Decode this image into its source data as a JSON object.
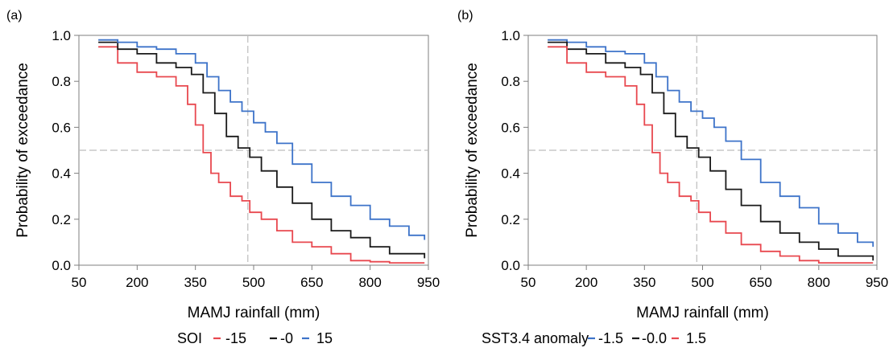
{
  "chart_data": [
    {
      "type": "line",
      "panel_label": "(a)",
      "xlabel": "MAMJ rainfall (mm)",
      "ylabel": "Probability of exceedance",
      "xlim": [
        50,
        950
      ],
      "ylim": [
        0.0,
        1.0
      ],
      "xticks": [
        "50",
        "200",
        "350",
        "500",
        "650",
        "800",
        "950"
      ],
      "yticks": [
        "0.0",
        "0.2",
        "0.4",
        "0.6",
        "0.8",
        "1.0"
      ],
      "reference_lines": {
        "x": 485,
        "y": 0.5
      },
      "legend": {
        "title": "SOI",
        "placement": "bottom"
      },
      "series": [
        {
          "name": "-15",
          "color": "#e8484f",
          "x": [
            100,
            150,
            200,
            250,
            300,
            330,
            350,
            370,
            390,
            410,
            440,
            470,
            490,
            520,
            560,
            600,
            650,
            700,
            750,
            800,
            850,
            940
          ],
          "y": [
            0.95,
            0.88,
            0.84,
            0.82,
            0.78,
            0.7,
            0.61,
            0.49,
            0.4,
            0.36,
            0.3,
            0.28,
            0.23,
            0.2,
            0.15,
            0.1,
            0.08,
            0.05,
            0.02,
            0.015,
            0.01,
            0.01
          ]
        },
        {
          "name": "-0",
          "color": "#1a1a1a",
          "x": [
            100,
            150,
            200,
            250,
            300,
            340,
            370,
            400,
            430,
            460,
            490,
            520,
            560,
            600,
            650,
            700,
            750,
            800,
            850,
            940
          ],
          "y": [
            0.97,
            0.94,
            0.92,
            0.88,
            0.86,
            0.83,
            0.75,
            0.66,
            0.56,
            0.51,
            0.47,
            0.41,
            0.34,
            0.27,
            0.2,
            0.15,
            0.12,
            0.08,
            0.05,
            0.03
          ]
        },
        {
          "name": "15",
          "color": "#3d73c9",
          "x": [
            100,
            150,
            200,
            250,
            300,
            350,
            380,
            410,
            440,
            470,
            500,
            530,
            560,
            600,
            650,
            700,
            750,
            800,
            850,
            900,
            940
          ],
          "y": [
            0.98,
            0.97,
            0.95,
            0.94,
            0.92,
            0.88,
            0.82,
            0.76,
            0.71,
            0.67,
            0.62,
            0.58,
            0.53,
            0.44,
            0.36,
            0.3,
            0.26,
            0.2,
            0.17,
            0.13,
            0.11
          ]
        }
      ]
    },
    {
      "type": "line",
      "panel_label": "(b)",
      "xlabel": "MAMJ rainfall (mm)",
      "ylabel": "Probability of exceedance",
      "xlim": [
        50,
        950
      ],
      "ylim": [
        0.0,
        1.0
      ],
      "xticks": [
        "50",
        "200",
        "350",
        "500",
        "650",
        "800",
        "950"
      ],
      "yticks": [
        "0.0",
        "0.2",
        "0.4",
        "0.6",
        "0.8",
        "1.0"
      ],
      "reference_lines": {
        "x": 485,
        "y": 0.5
      },
      "legend": {
        "title": "SST3.4 anomaly",
        "placement": "bottom"
      },
      "series": [
        {
          "name": "-1.5",
          "color": "#3d73c9",
          "x": [
            100,
            150,
            200,
            250,
            300,
            350,
            380,
            410,
            440,
            470,
            500,
            530,
            560,
            600,
            650,
            700,
            750,
            800,
            850,
            900,
            940
          ],
          "y": [
            0.98,
            0.97,
            0.95,
            0.93,
            0.92,
            0.88,
            0.82,
            0.76,
            0.71,
            0.67,
            0.64,
            0.6,
            0.54,
            0.46,
            0.36,
            0.3,
            0.25,
            0.18,
            0.14,
            0.1,
            0.08
          ]
        },
        {
          "name": "-0.0",
          "color": "#1a1a1a",
          "x": [
            100,
            150,
            200,
            250,
            300,
            340,
            370,
            400,
            430,
            460,
            490,
            520,
            560,
            600,
            650,
            700,
            750,
            800,
            850,
            940
          ],
          "y": [
            0.97,
            0.94,
            0.92,
            0.88,
            0.86,
            0.83,
            0.75,
            0.66,
            0.56,
            0.51,
            0.47,
            0.41,
            0.33,
            0.26,
            0.19,
            0.14,
            0.1,
            0.07,
            0.04,
            0.02
          ]
        },
        {
          "name": "1.5",
          "color": "#e8484f",
          "x": [
            100,
            150,
            200,
            250,
            300,
            330,
            350,
            370,
            390,
            410,
            440,
            470,
            490,
            520,
            560,
            600,
            650,
            700,
            750,
            800,
            850,
            940
          ],
          "y": [
            0.95,
            0.88,
            0.84,
            0.82,
            0.78,
            0.7,
            0.61,
            0.49,
            0.4,
            0.36,
            0.3,
            0.28,
            0.23,
            0.19,
            0.14,
            0.09,
            0.06,
            0.04,
            0.02,
            0.01,
            0.01,
            0.01
          ]
        }
      ]
    }
  ]
}
